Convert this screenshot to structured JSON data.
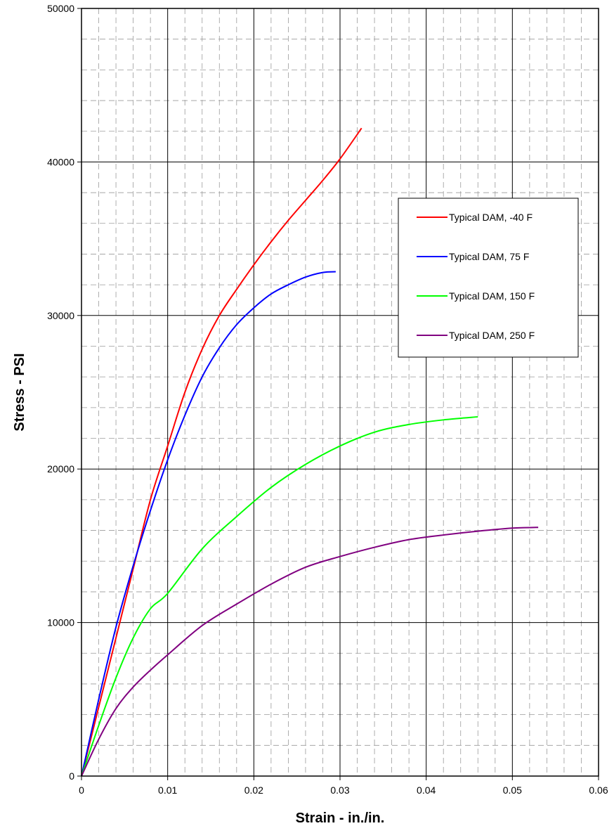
{
  "chart_data": {
    "type": "line",
    "title": "",
    "xlabel": "Strain - in./in.",
    "ylabel": "Stress - PSI",
    "xlim": [
      0,
      0.06
    ],
    "ylim": [
      0,
      50000
    ],
    "x_ticks": [
      "0",
      "0.01",
      "0.02",
      "0.03",
      "0.04",
      "0.05",
      "0.06"
    ],
    "y_ticks": [
      "0",
      "10000",
      "20000",
      "30000",
      "40000",
      "50000"
    ],
    "grid": "major solid, minor dashed",
    "legend_position": "right",
    "series": [
      {
        "name": "Typical DAM, -40 F",
        "color": "#ff0000",
        "points": [
          [
            0,
            0
          ],
          [
            0.002,
            4500
          ],
          [
            0.004,
            9000
          ],
          [
            0.006,
            13500
          ],
          [
            0.008,
            18000
          ],
          [
            0.01,
            21500
          ],
          [
            0.012,
            25000
          ],
          [
            0.014,
            27800
          ],
          [
            0.016,
            30000
          ],
          [
            0.018,
            31700
          ],
          [
            0.02,
            33300
          ],
          [
            0.022,
            34800
          ],
          [
            0.024,
            36200
          ],
          [
            0.026,
            37500
          ],
          [
            0.028,
            38800
          ],
          [
            0.03,
            40200
          ],
          [
            0.0325,
            42200
          ]
        ]
      },
      {
        "name": "Typical DAM, 75 F",
        "color": "#0000ff",
        "points": [
          [
            0,
            0
          ],
          [
            0.002,
            5000
          ],
          [
            0.004,
            9700
          ],
          [
            0.006,
            13700
          ],
          [
            0.008,
            17300
          ],
          [
            0.01,
            20600
          ],
          [
            0.012,
            23500
          ],
          [
            0.014,
            26000
          ],
          [
            0.016,
            27900
          ],
          [
            0.018,
            29400
          ],
          [
            0.02,
            30500
          ],
          [
            0.022,
            31400
          ],
          [
            0.024,
            32000
          ],
          [
            0.026,
            32500
          ],
          [
            0.028,
            32800
          ],
          [
            0.0295,
            32850
          ]
        ]
      },
      {
        "name": "Typical DAM, 150 F",
        "color": "#00ff00",
        "points": [
          [
            0,
            0
          ],
          [
            0.002,
            3300
          ],
          [
            0.004,
            6400
          ],
          [
            0.006,
            9000
          ],
          [
            0.008,
            10900
          ],
          [
            0.01,
            11900
          ],
          [
            0.014,
            14800
          ],
          [
            0.018,
            16900
          ],
          [
            0.022,
            18800
          ],
          [
            0.026,
            20300
          ],
          [
            0.03,
            21500
          ],
          [
            0.034,
            22400
          ],
          [
            0.038,
            22900
          ],
          [
            0.042,
            23200
          ],
          [
            0.046,
            23400
          ]
        ]
      },
      {
        "name": "Typical DAM, 250 F",
        "color": "#800080",
        "points": [
          [
            0,
            0
          ],
          [
            0.002,
            2400
          ],
          [
            0.004,
            4400
          ],
          [
            0.006,
            5800
          ],
          [
            0.008,
            6900
          ],
          [
            0.01,
            7900
          ],
          [
            0.014,
            9800
          ],
          [
            0.018,
            11200
          ],
          [
            0.022,
            12500
          ],
          [
            0.026,
            13600
          ],
          [
            0.03,
            14300
          ],
          [
            0.034,
            14900
          ],
          [
            0.038,
            15400
          ],
          [
            0.042,
            15700
          ],
          [
            0.046,
            15950
          ],
          [
            0.05,
            16150
          ],
          [
            0.053,
            16200
          ]
        ]
      }
    ]
  }
}
